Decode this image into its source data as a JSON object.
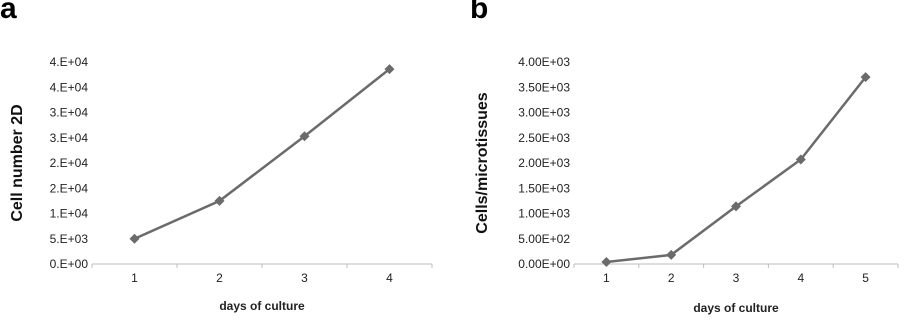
{
  "panels": [
    {
      "letter": "a"
    },
    {
      "letter": "b"
    }
  ],
  "chart_data": [
    {
      "type": "line",
      "title": "",
      "xlabel": "days of culture",
      "ylabel": "Cell number 2D",
      "x": [
        1,
        2,
        3,
        4
      ],
      "series": [
        {
          "values": [
            5000,
            12500,
            25300,
            38600
          ]
        }
      ],
      "ylim": [
        0,
        40000
      ],
      "yticks": [
        0,
        5000,
        10000,
        15000,
        20000,
        25000,
        30000,
        35000,
        40000
      ],
      "ytick_labels": [
        "0.E+00",
        "5.E+03",
        "1.E+04",
        "2.E+04",
        "2.E+04",
        "3.E+04",
        "3.E+04",
        "4.E+04",
        "4.E+04"
      ],
      "xtick_labels": [
        "1",
        "2",
        "3",
        "4"
      ],
      "grid": false,
      "line_color": "#6b6b6b",
      "marker": "diamond"
    },
    {
      "type": "line",
      "title": "",
      "xlabel": "days of culture",
      "ylabel": "Cells/microtissues",
      "x": [
        1,
        2,
        3,
        4,
        5
      ],
      "series": [
        {
          "values": [
            40,
            180,
            1140,
            2070,
            3700
          ]
        }
      ],
      "ylim": [
        0,
        4000
      ],
      "yticks": [
        0,
        500,
        1000,
        1500,
        2000,
        2500,
        3000,
        3500,
        4000
      ],
      "ytick_labels": [
        "0.00E+00",
        "5.00E+02",
        "1.00E+03",
        "1.50E+03",
        "2.00E+03",
        "2.50E+03",
        "3.00E+03",
        "3.50E+03",
        "4.00E+03"
      ],
      "xtick_labels": [
        "1",
        "2",
        "3",
        "4",
        "5"
      ],
      "grid": false,
      "line_color": "#6b6b6b",
      "marker": "diamond"
    }
  ]
}
